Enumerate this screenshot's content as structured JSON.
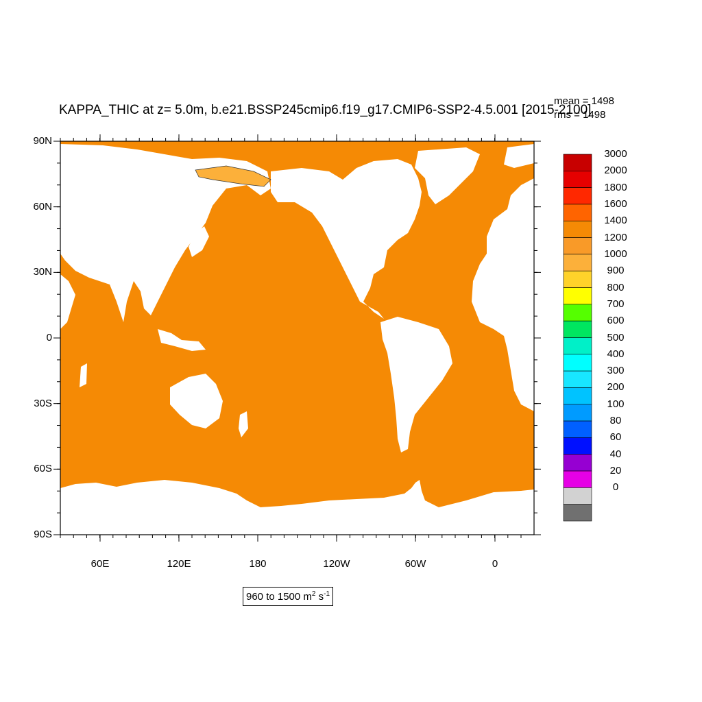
{
  "title": "KAPPA_THIC at z=   5.0m, b.e21.BSSP245cmip6.f19_g17.CMIP6-SSP2-4.5.001 [2015-2100]",
  "stats": {
    "mean": "mean = 1498",
    "rms": "rms = 1498"
  },
  "lat_ticks": [
    "90N",
    "60N",
    "30N",
    "0",
    "30S",
    "60S",
    "90S"
  ],
  "lon_ticks": [
    "60E",
    "120E",
    "180",
    "120W",
    "60W",
    "0"
  ],
  "colorbar": {
    "labels": [
      "3000",
      "2000",
      "1800",
      "1600",
      "1400",
      "1200",
      "1000",
      "900",
      "800",
      "700",
      "600",
      "500",
      "400",
      "300",
      "200",
      "100",
      "80",
      "60",
      "40",
      "20",
      "0"
    ],
    "colors": [
      "#c80000",
      "#e60000",
      "#ff2800",
      "#ff6400",
      "#f58a05",
      "#f99a28",
      "#fcb03a",
      "#ffd22a",
      "#ffff00",
      "#55ff00",
      "#00e660",
      "#00f0c8",
      "#00ffff",
      "#18e6ff",
      "#00c3ff",
      "#009bff",
      "#0060ff",
      "#0010ff",
      "#9600d2",
      "#e600e6",
      "#d2d2d2",
      "#707070"
    ]
  },
  "range": {
    "text": "960 to 1500 m",
    "sup1": "2",
    "mid": " s",
    "sup2": "-1"
  },
  "chart_data": {
    "type": "heatmap",
    "field": "KAPPA_THIC",
    "depth": "5.0m",
    "ocean_fill_value": 1498,
    "ocean_color": "#f58a05",
    "land_color": "#ffffff",
    "xlabel": "",
    "ylabel": "",
    "x_ticks": [
      "60E",
      "120E",
      "180",
      "120W",
      "60W",
      "0"
    ],
    "y_ticks": [
      "90N",
      "60N",
      "30N",
      "0",
      "30S",
      "60S",
      "90S"
    ],
    "value_range": [
      960,
      1500
    ],
    "units": "m^2 s^-1"
  }
}
